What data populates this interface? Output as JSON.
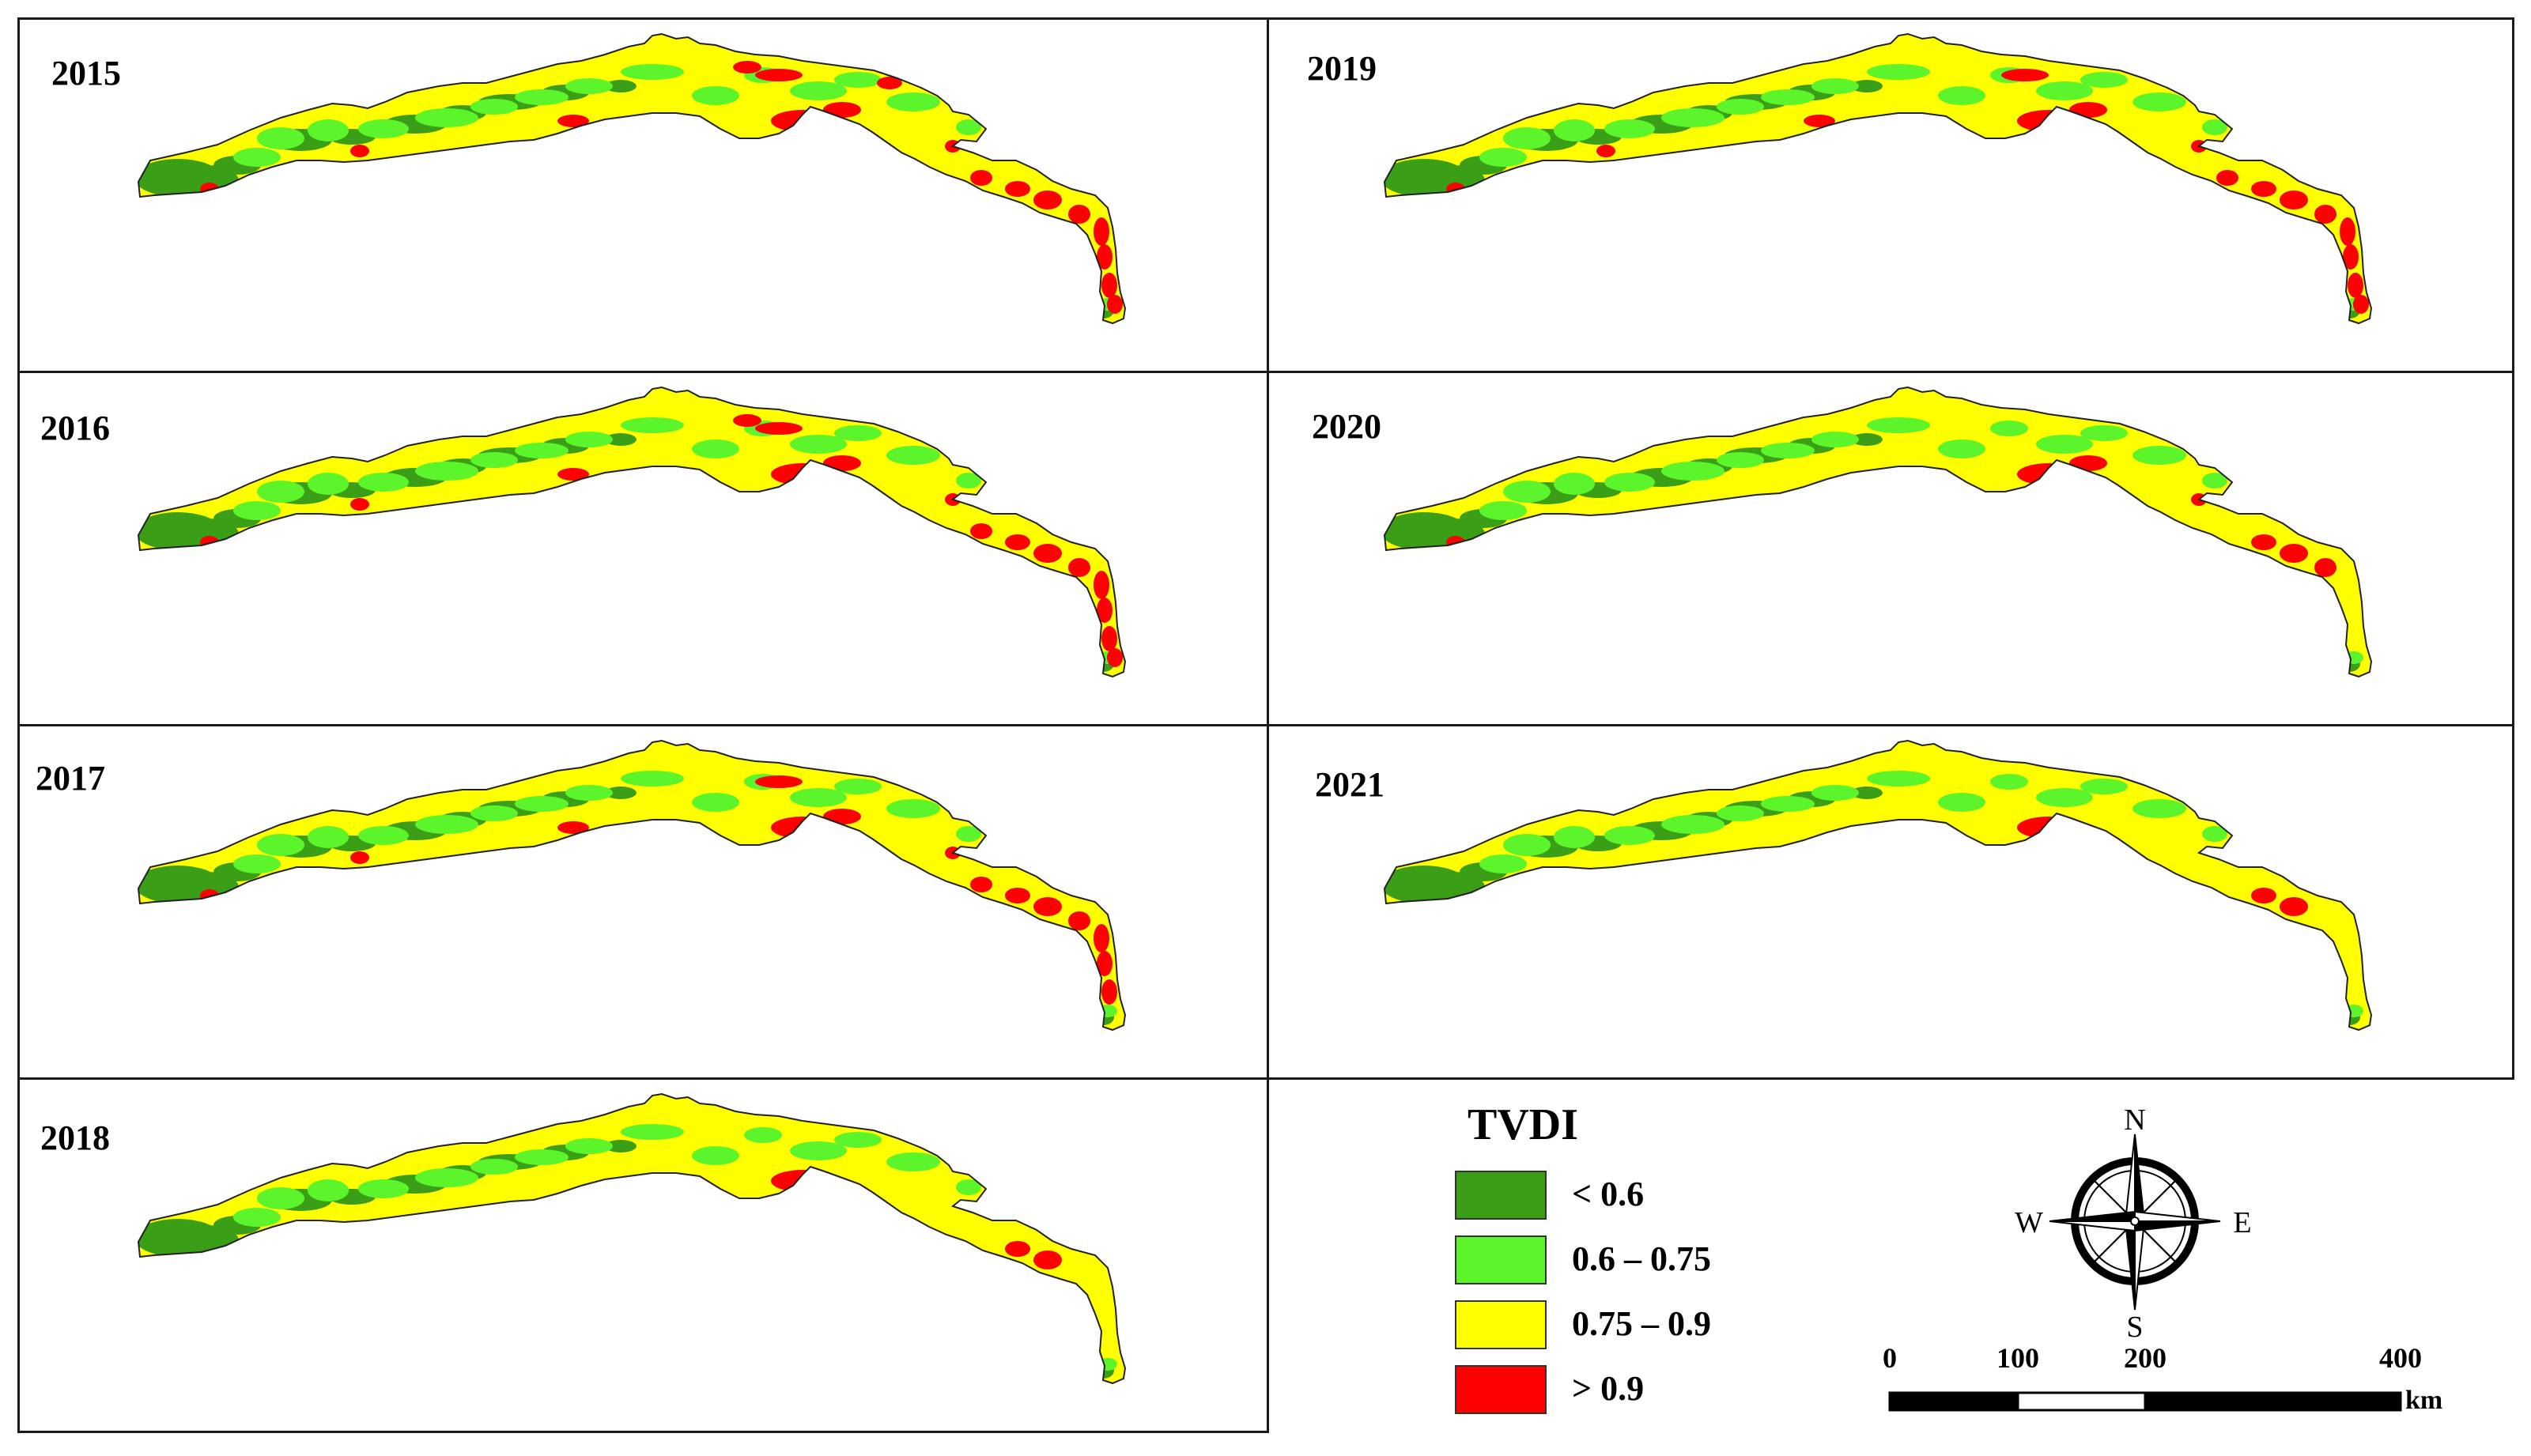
{
  "legend": {
    "title": "TVDI",
    "classes": [
      {
        "label": "< 0.6",
        "color": "#3a9e17"
      },
      {
        "label": "0.6 – 0.75",
        "color": "#5cf52c"
      },
      {
        "label": "0.75 – 0.9",
        "color": "#ffff00"
      },
      {
        "label": "> 0.9",
        "color": "#ff0000"
      }
    ]
  },
  "panels": [
    {
      "year": "2015",
      "red_level": 1.0
    },
    {
      "year": "2016",
      "red_level": 0.9
    },
    {
      "year": "2017",
      "red_level": 0.8
    },
    {
      "year": "2018",
      "red_level": 0.45
    },
    {
      "year": "2019",
      "red_level": 0.85
    },
    {
      "year": "2020",
      "red_level": 0.55
    },
    {
      "year": "2021",
      "red_level": 0.4
    }
  ],
  "compass": {
    "n": "N",
    "s": "S",
    "e": "E",
    "w": "W"
  },
  "scale": {
    "ticks": [
      "0",
      "100",
      "200",
      "400"
    ],
    "unit": "km"
  }
}
